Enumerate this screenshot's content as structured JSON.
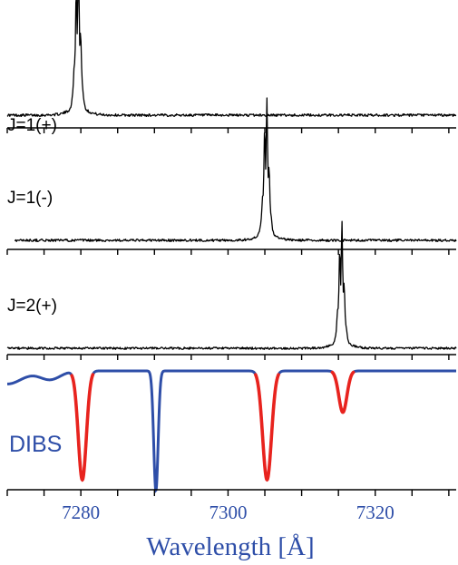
{
  "chart_data": {
    "type": "line",
    "title": "",
    "xlabel": "Wavelength [Å]",
    "ylabel": "",
    "xlim": [
      7270,
      7331
    ],
    "x_ticks": [
      7280,
      7300,
      7320
    ],
    "x_tick_labels": [
      "7280",
      "7300",
      "7320"
    ],
    "grid": false,
    "panels": [
      {
        "label": "J=1(+)",
        "type": "emission",
        "peak_center": 7279.6,
        "peak_width": 0.35,
        "peak_height": 1.0,
        "noise": 0.012,
        "x_range": [
          7270,
          7331
        ]
      },
      {
        "label": "J=1(-)",
        "type": "emission",
        "peak_center": 7305.2,
        "peak_width": 0.35,
        "peak_height": 0.94,
        "noise": 0.012,
        "x_range": [
          7271,
          7331
        ]
      },
      {
        "label": "J=2(+)",
        "type": "emission",
        "peak_center": 7315.4,
        "peak_width": 0.35,
        "peak_height": 0.92,
        "noise": 0.012,
        "x_range": [
          7270,
          7331
        ]
      }
    ],
    "dibs": {
      "label": "DIBS",
      "colors": {
        "continuum": "#2e4ea8",
        "matched": "#e8231e"
      },
      "bands": [
        {
          "center": 7270.0,
          "depth": 0.12,
          "width": 2.0,
          "matched": false
        },
        {
          "center": 7280.2,
          "depth": 1.0,
          "width": 0.55,
          "matched": true
        },
        {
          "center": 7290.2,
          "depth": 1.1,
          "width": 0.3,
          "matched": false
        },
        {
          "center": 7305.3,
          "depth": 1.0,
          "width": 0.6,
          "matched": true
        },
        {
          "center": 7315.6,
          "depth": 0.38,
          "width": 0.55,
          "matched": true
        }
      ]
    }
  }
}
